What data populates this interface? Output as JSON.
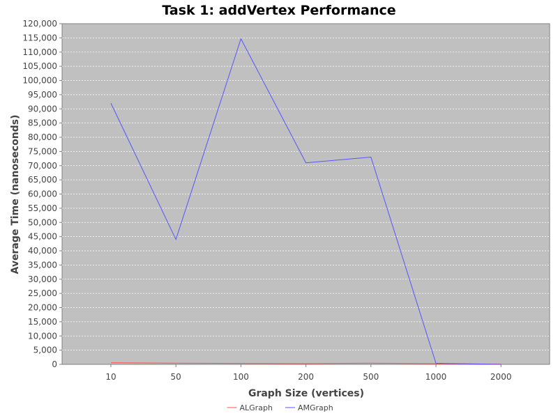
{
  "chart_data": {
    "type": "line",
    "title": "Task 1: addVertex Performance",
    "xlabel": "Graph Size (vertices)",
    "ylabel": "Average Time (nanoseconds)",
    "categories": [
      "10",
      "50",
      "100",
      "200",
      "500",
      "1000",
      "2000"
    ],
    "y_ticks": [
      "0",
      "5,000",
      "10,000",
      "15,000",
      "20,000",
      "25,000",
      "30,000",
      "35,000",
      "40,000",
      "45,000",
      "50,000",
      "55,000",
      "60,000",
      "65,000",
      "70,000",
      "75,000",
      "80,000",
      "85,000",
      "90,000",
      "95,000",
      "100,000",
      "105,000",
      "110,000",
      "115,000",
      "120,000"
    ],
    "ylim": [
      0,
      120000
    ],
    "grid": true,
    "legend_position": "bottom",
    "plot_background": "#c0c0c0",
    "series": [
      {
        "name": "ALGraph",
        "color": "#ff5555",
        "values": [
          600,
          450,
          350,
          250,
          450,
          250,
          100
        ]
      },
      {
        "name": "AMGraph",
        "color": "#5555ff",
        "values": [
          92000,
          44000,
          114700,
          71000,
          73000,
          400,
          0
        ]
      }
    ]
  }
}
